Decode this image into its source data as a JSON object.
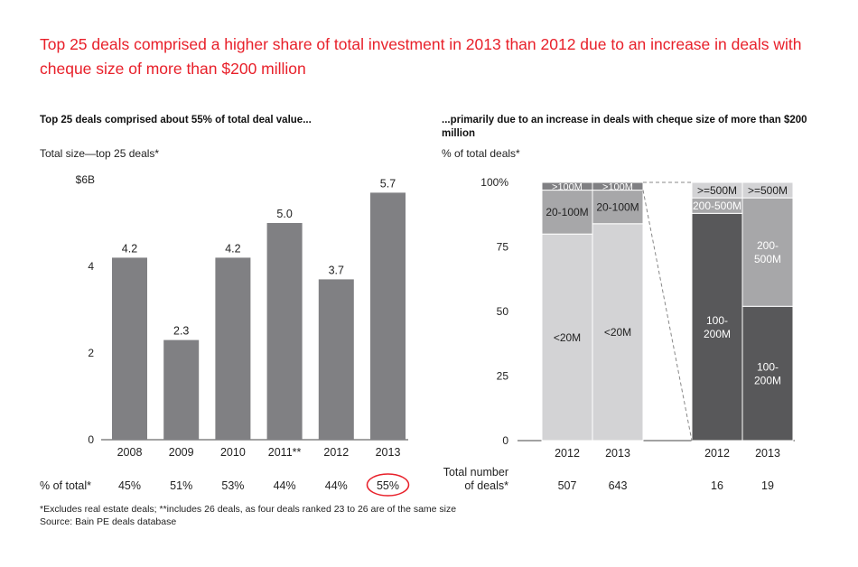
{
  "headline": "Top 25 deals comprised a higher share of total investment in 2013 than 2012 due to an increase in deals with cheque size of more than $200 million",
  "colors": {
    "accent": "#e8202a",
    "bar_gray": "#808083",
    "light_gray": "#d3d3d5",
    "mid_gray": "#a7a7a9",
    "dark_gray": "#58585a"
  },
  "chart_data": [
    {
      "type": "bar",
      "title": "Top 25 deals comprised about 55% of total deal value...",
      "ylabel": "Total size—top 25 deals*",
      "ylim": [
        0,
        6
      ],
      "yticks": [
        {
          "value": 0,
          "label": "0"
        },
        {
          "value": 2,
          "label": "2"
        },
        {
          "value": 4,
          "label": "4"
        },
        {
          "value": 6,
          "label": "$6B"
        }
      ],
      "categories": [
        "2008",
        "2009",
        "2010",
        "2011**",
        "2012",
        "2013"
      ],
      "values": [
        4.2,
        2.3,
        4.2,
        5.0,
        3.7,
        5.7
      ],
      "value_labels": [
        "4.2",
        "2.3",
        "4.2",
        "5.0",
        "3.7",
        "5.7"
      ],
      "pct_row_label": "% of total*",
      "pct_of_total": [
        "45%",
        "51%",
        "53%",
        "44%",
        "44%",
        "55%"
      ],
      "highlighted": "55%"
    },
    {
      "type": "bar",
      "stacked": true,
      "title": "...primarily due to an increase in deals with cheque size of more than $200 million",
      "ylabel": "% of total deals*",
      "ylim": [
        0,
        100
      ],
      "yticks": [
        {
          "value": 0,
          "label": "0"
        },
        {
          "value": 25,
          "label": "25"
        },
        {
          "value": 50,
          "label": "50"
        },
        {
          "value": 75,
          "label": "75"
        },
        {
          "value": 100,
          "label": "100%"
        }
      ],
      "count_row_label": [
        "Total number",
        "of deals*"
      ],
      "groups": [
        {
          "bars": [
            {
              "category": "2012",
              "total_deals": "507",
              "segments": [
                {
                  "label": "<20M",
                  "value": 80,
                  "color": "#d3d3d5",
                  "text_color": "#222222"
                },
                {
                  "label": "20-100M",
                  "value": 17,
                  "color": "#a7a7a9",
                  "text_color": "#222222"
                },
                {
                  "label": ">100M",
                  "value": 3,
                  "color": "#808083",
                  "text_color": "#ffffff"
                }
              ]
            },
            {
              "category": "2013",
              "total_deals": "643",
              "segments": [
                {
                  "label": "<20M",
                  "value": 84,
                  "color": "#d3d3d5",
                  "text_color": "#222222"
                },
                {
                  "label": "20-100M",
                  "value": 13,
                  "color": "#a7a7a9",
                  "text_color": "#222222"
                },
                {
                  "label": ">100M",
                  "value": 3,
                  "color": "#808083",
                  "text_color": "#ffffff"
                }
              ]
            }
          ]
        },
        {
          "bars": [
            {
              "category": "2012",
              "total_deals": "16",
              "segments": [
                {
                  "label": "100-\n200M",
                  "value": 88,
                  "color": "#58585a",
                  "text_color": "#ffffff"
                },
                {
                  "label": "200-500M",
                  "value": 6,
                  "color": "#a7a7a9",
                  "text_color": "#ffffff"
                },
                {
                  "label": ">=500M",
                  "value": 6,
                  "color": "#d3d3d5",
                  "text_color": "#222222"
                }
              ]
            },
            {
              "category": "2013",
              "total_deals": "19",
              "segments": [
                {
                  "label": "100-\n200M",
                  "value": 52,
                  "color": "#58585a",
                  "text_color": "#ffffff"
                },
                {
                  "label": "200-\n500M",
                  "value": 42,
                  "color": "#a7a7a9",
                  "text_color": "#ffffff"
                },
                {
                  "label": ">=500M",
                  "value": 6,
                  "color": "#d3d3d5",
                  "text_color": "#222222"
                }
              ]
            }
          ]
        }
      ]
    }
  ],
  "footnotes": [
    "*Excludes real estate deals; **includes 26 deals, as four deals ranked 23 to 26 are of the same size",
    "Source: Bain PE deals database"
  ]
}
